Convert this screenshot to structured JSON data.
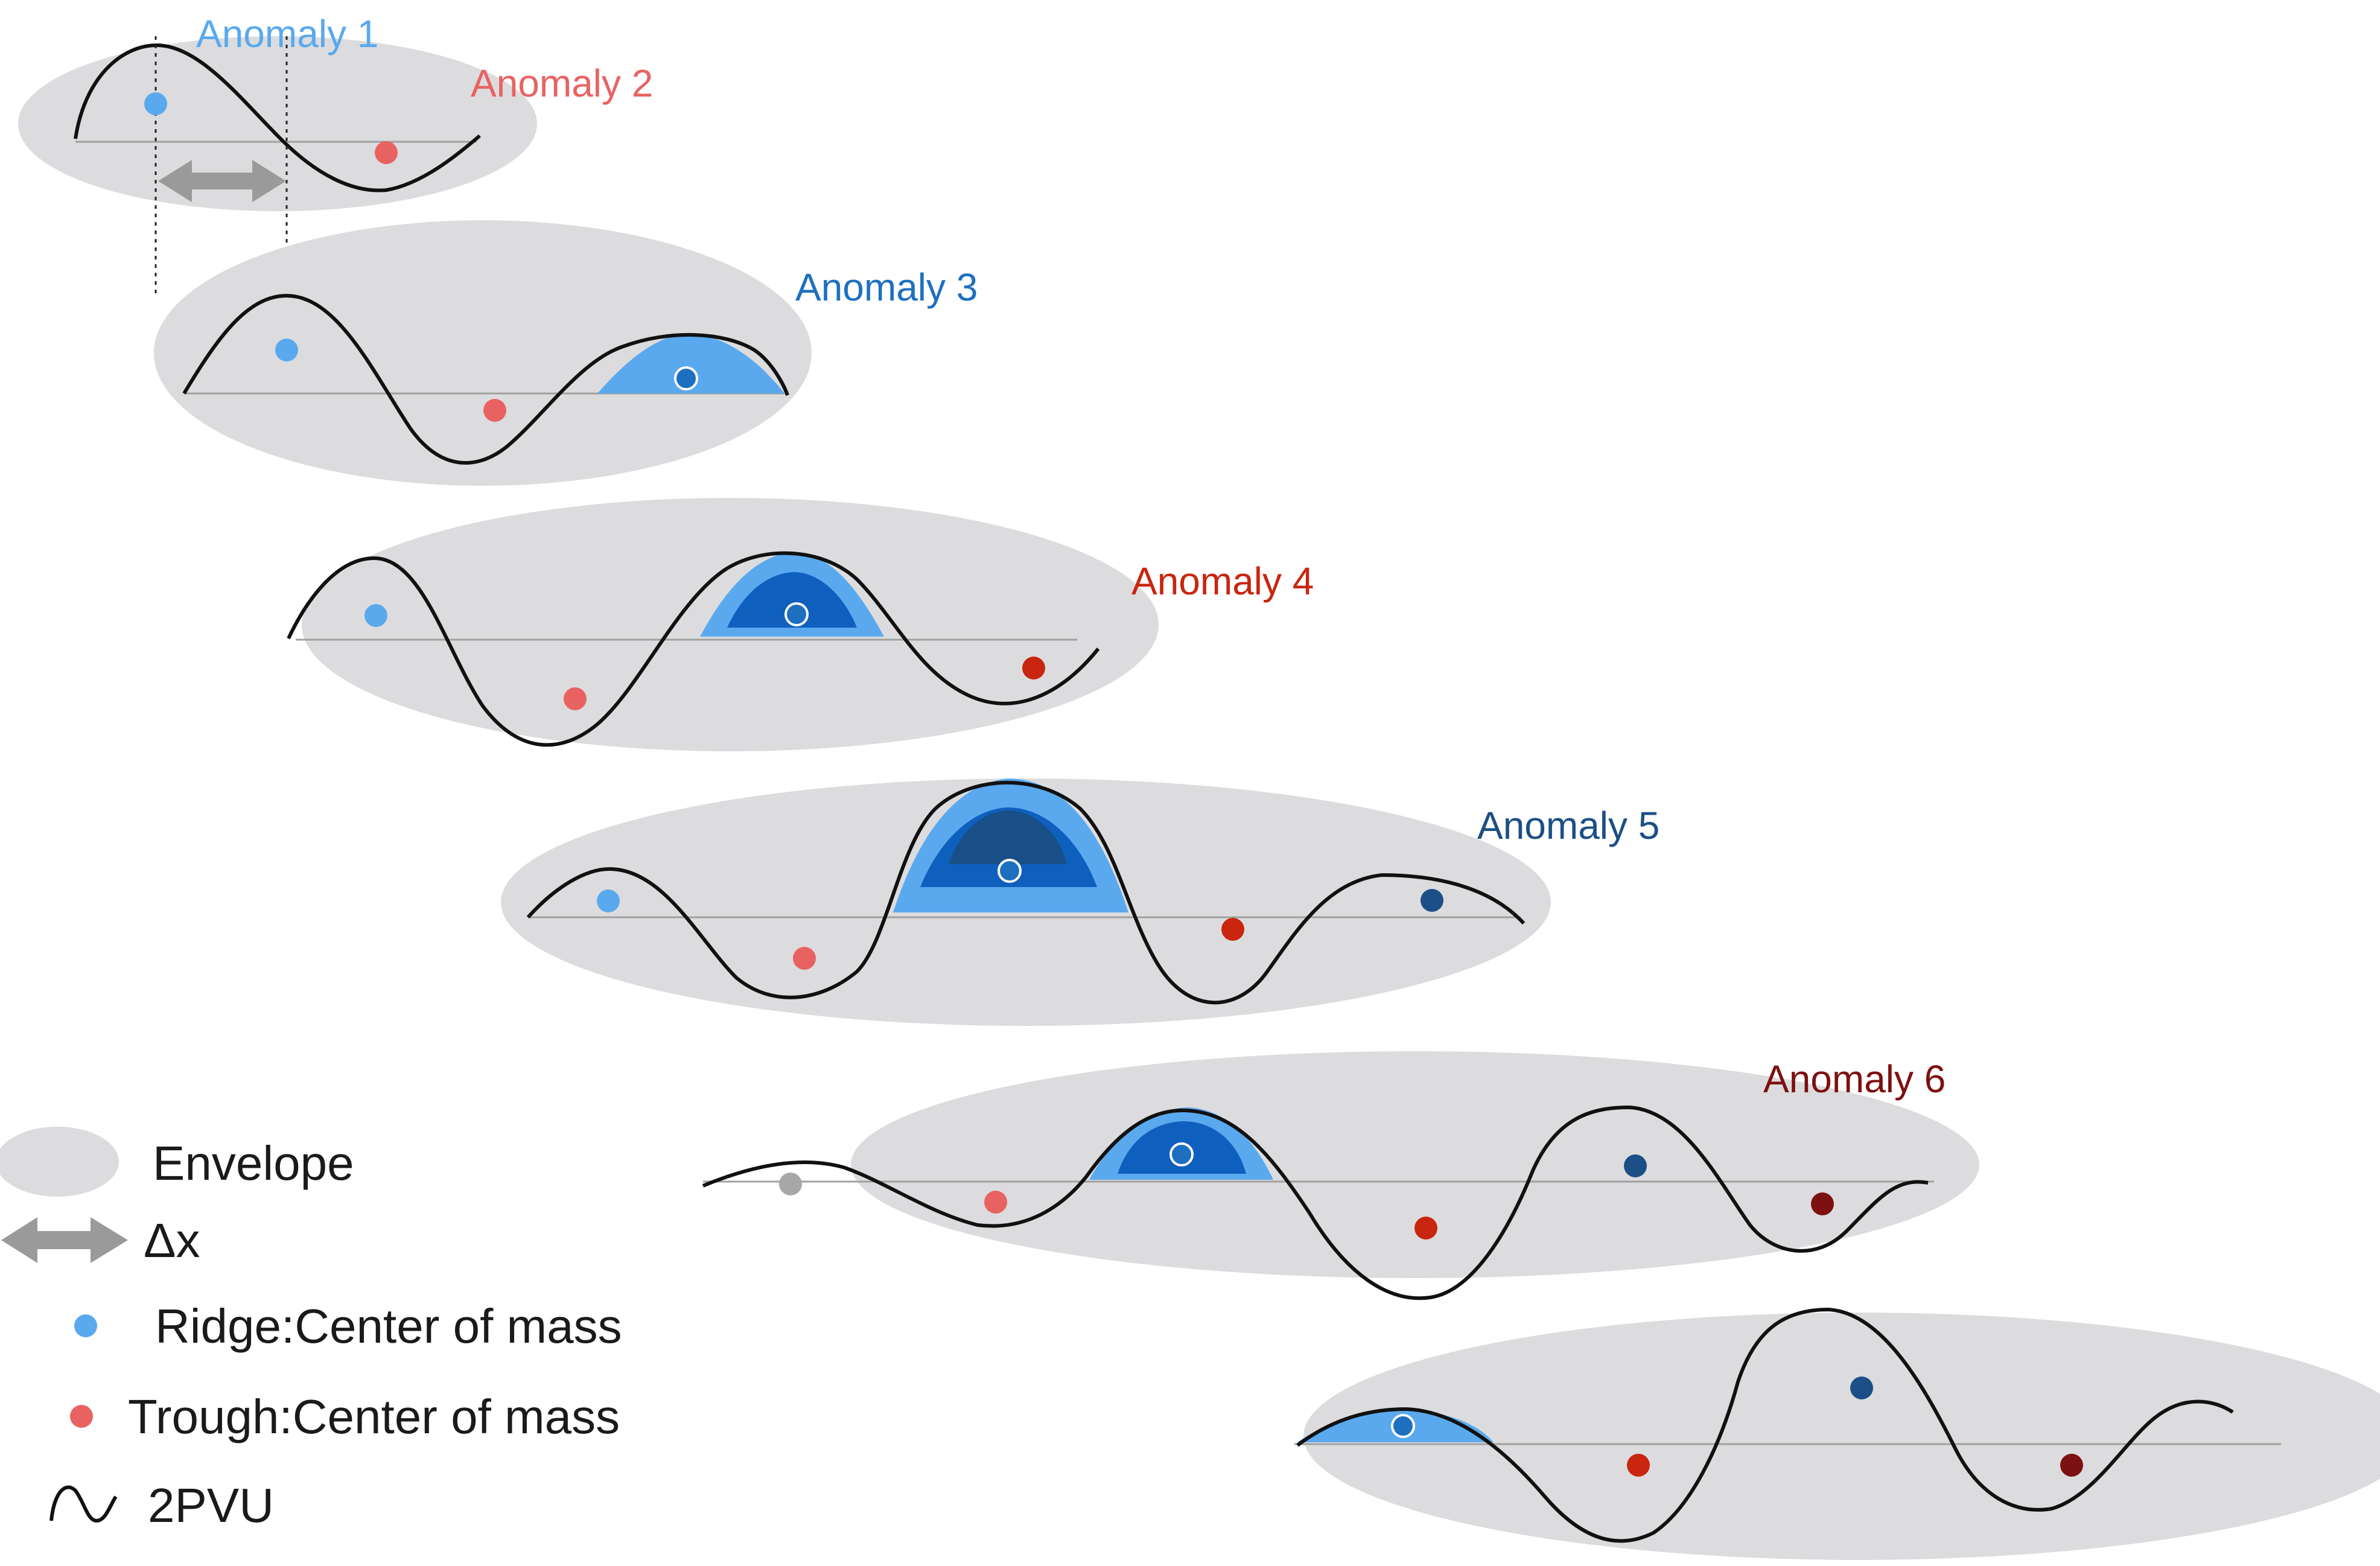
{
  "anomaly_labels": {
    "a1": "Anomaly 1",
    "a2": "Anomaly 2",
    "a3": "Anomaly 3",
    "a4": "Anomaly 4",
    "a5": "Anomaly 5",
    "a6": "Anomaly 6"
  },
  "legend": {
    "envelope": "Envelope",
    "dx": "Δx",
    "ridge": "Ridge:Center of mass",
    "trough": "Trough:Center of mass",
    "pvu": "2PVU"
  },
  "colors": {
    "envelope": "#dcdcde",
    "ridge": "#5aa9ee",
    "trough": "#e96262",
    "anomaly1": "#5aa9ee",
    "anomaly2": "#e96262",
    "anomaly3": "#1e6fc0",
    "anomaly4": "#c9250f",
    "anomaly5": "#1b4f86",
    "anomaly6": "#7d1010",
    "intensity_light": "#5aa9ee",
    "intensity_mid": "#0f5fbf",
    "intensity_dark": "#174f86",
    "curve": "#111111",
    "arrow": "#9a9a9a"
  }
}
